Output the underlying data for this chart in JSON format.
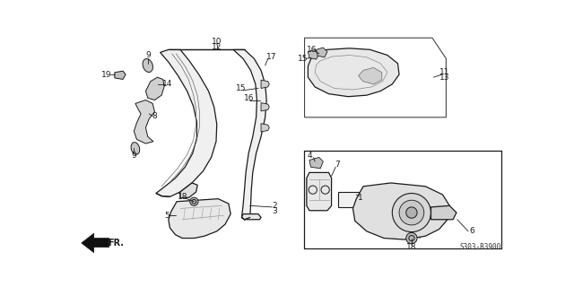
{
  "part_number": "S303-B3900",
  "background_color": "#ffffff",
  "fig_width": 6.4,
  "fig_height": 3.2,
  "dpi": 100,
  "dark": "#1a1a1a",
  "gray": "#555555"
}
